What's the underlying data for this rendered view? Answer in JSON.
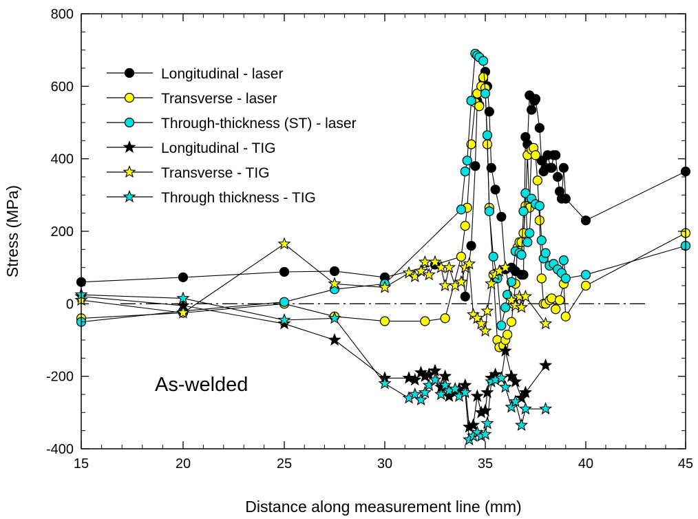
{
  "chart_data": {
    "type": "scatter",
    "xlabel": "Distance along measurement line  (mm)",
    "ylabel": "Stress  (MPa)",
    "xlim": [
      15,
      45
    ],
    "ylim": [
      -400,
      800
    ],
    "x_scale": "piecewise",
    "x_ticks": [
      15,
      20,
      25,
      30,
      35,
      40,
      45
    ],
    "y_ticks": [
      -400,
      -200,
      0,
      200,
      400,
      600,
      800
    ],
    "annotation": "As-welded",
    "legend_position": "top-left",
    "reference_line": {
      "y": 0,
      "style": "dash-dot"
    },
    "series": [
      {
        "name": "Longitudinal - laser",
        "marker": "circle",
        "color": "#000000",
        "points": [
          [
            15,
            60
          ],
          [
            20,
            73
          ],
          [
            25,
            88
          ],
          [
            27.5,
            90
          ],
          [
            30,
            73
          ],
          [
            32.5,
            108
          ],
          [
            33.8,
            130
          ],
          [
            34,
            20
          ],
          [
            34.3,
            160
          ],
          [
            34.5,
            380
          ],
          [
            34.6,
            560
          ],
          [
            34.7,
            548
          ],
          [
            34.8,
            590
          ],
          [
            34.9,
            620
          ],
          [
            35,
            640
          ],
          [
            35.1,
            600
          ],
          [
            35.2,
            530
          ],
          [
            35.3,
            375
          ],
          [
            35.5,
            315
          ],
          [
            35.8,
            240
          ],
          [
            36,
            95
          ],
          [
            36.3,
            100
          ],
          [
            36.5,
            90
          ],
          [
            36.8,
            80
          ],
          [
            36.9,
            80
          ],
          [
            37,
            460
          ],
          [
            37.1,
            440
          ],
          [
            37.2,
            575
          ],
          [
            37.3,
            535
          ],
          [
            37.45,
            560
          ],
          [
            37.5,
            565
          ],
          [
            37.7,
            485
          ],
          [
            37.8,
            395
          ],
          [
            37.9,
            365
          ],
          [
            38,
            375
          ],
          [
            38.1,
            410
          ],
          [
            38.25,
            375
          ],
          [
            38.3,
            375
          ],
          [
            38.4,
            410
          ],
          [
            38.5,
            410
          ],
          [
            38.6,
            350
          ],
          [
            38.7,
            310
          ],
          [
            38.8,
            290
          ],
          [
            38.9,
            375
          ],
          [
            39,
            290
          ],
          [
            40,
            230
          ],
          [
            45,
            365
          ]
        ]
      },
      {
        "name": "Transverse - laser",
        "marker": "circle",
        "color": "#ffff00",
        "points": [
          [
            15,
            -40
          ],
          [
            20,
            -25
          ],
          [
            25,
            0
          ],
          [
            27.5,
            -35
          ],
          [
            30,
            -48
          ],
          [
            32,
            -48
          ],
          [
            33,
            -40
          ],
          [
            33.8,
            130
          ],
          [
            34,
            215
          ],
          [
            34.1,
            265
          ],
          [
            34.3,
            440
          ],
          [
            34.5,
            555
          ],
          [
            34.6,
            580
          ],
          [
            34.7,
            545
          ],
          [
            34.8,
            600
          ],
          [
            34.9,
            625
          ],
          [
            35,
            595
          ],
          [
            35.1,
            440
          ],
          [
            35.2,
            265
          ],
          [
            35.4,
            80
          ],
          [
            35.6,
            -100
          ],
          [
            35.7,
            -120
          ],
          [
            35.9,
            -115
          ],
          [
            36,
            -100
          ],
          [
            36.1,
            -85
          ],
          [
            36.3,
            -50
          ],
          [
            36.4,
            0
          ],
          [
            36.5,
            55
          ],
          [
            36.6,
            155
          ],
          [
            36.7,
            170
          ],
          [
            36.8,
            170
          ],
          [
            36.9,
            195
          ],
          [
            37,
            270
          ],
          [
            37.1,
            410
          ],
          [
            37.2,
            265
          ],
          [
            37.3,
            425
          ],
          [
            37.4,
            430
          ],
          [
            37.5,
            410
          ],
          [
            37.6,
            340
          ],
          [
            37.7,
            230
          ],
          [
            37.8,
            70
          ],
          [
            37.9,
            0
          ],
          [
            38,
            0
          ],
          [
            38.2,
            10
          ],
          [
            38.3,
            15
          ],
          [
            38.5,
            -15
          ],
          [
            38.7,
            10
          ],
          [
            38.9,
            55
          ],
          [
            39,
            -35
          ],
          [
            40,
            50
          ],
          [
            45,
            195
          ]
        ]
      },
      {
        "name": "Through-thickness (ST) - laser",
        "marker": "circle",
        "color": "#00e0e0",
        "points": [
          [
            15,
            -50
          ],
          [
            20,
            -20
          ],
          [
            25,
            5
          ],
          [
            27.5,
            40
          ],
          [
            30,
            55
          ],
          [
            33.8,
            260
          ],
          [
            34,
            365
          ],
          [
            34.1,
            395
          ],
          [
            34.3,
            560
          ],
          [
            34.5,
            690
          ],
          [
            34.6,
            685
          ],
          [
            34.7,
            680
          ],
          [
            34.9,
            670
          ],
          [
            35,
            580
          ],
          [
            35.1,
            465
          ],
          [
            35.2,
            255
          ],
          [
            35.4,
            130
          ],
          [
            35.6,
            70
          ],
          [
            35.8,
            -60
          ],
          [
            36,
            -10
          ],
          [
            36.1,
            25
          ],
          [
            36.3,
            60
          ],
          [
            36.5,
            145
          ],
          [
            36.7,
            140
          ],
          [
            36.8,
            135
          ],
          [
            36.9,
            255
          ],
          [
            37,
            305
          ],
          [
            37.1,
            170
          ],
          [
            37.2,
            195
          ],
          [
            37.3,
            290
          ],
          [
            37.5,
            275
          ],
          [
            37.7,
            270
          ],
          [
            37.8,
            175
          ],
          [
            37.9,
            125
          ],
          [
            38,
            140
          ],
          [
            38.2,
            105
          ],
          [
            38.4,
            110
          ],
          [
            38.6,
            95
          ],
          [
            38.8,
            85
          ],
          [
            38.9,
            120
          ],
          [
            39,
            70
          ],
          [
            40,
            80
          ],
          [
            45,
            160
          ]
        ]
      },
      {
        "name": "Longitudinal - TIG",
        "marker": "star",
        "color": "#000000",
        "points": [
          [
            15,
            20
          ],
          [
            20,
            -5
          ],
          [
            25,
            -55
          ],
          [
            27.5,
            -100
          ],
          [
            30,
            -205
          ],
          [
            31.2,
            -205
          ],
          [
            31.5,
            -210
          ],
          [
            31.8,
            -190
          ],
          [
            32,
            -200
          ],
          [
            32.2,
            -195
          ],
          [
            32.5,
            -185
          ],
          [
            32.8,
            -230
          ],
          [
            33,
            -200
          ],
          [
            33.2,
            -255
          ],
          [
            33.5,
            -245
          ],
          [
            33.7,
            -235
          ],
          [
            34,
            -225
          ],
          [
            34.2,
            -340
          ],
          [
            34.4,
            -335
          ],
          [
            34.6,
            -255
          ],
          [
            34.8,
            -300
          ],
          [
            35,
            -295
          ],
          [
            35.1,
            -245
          ],
          [
            35.3,
            -205
          ],
          [
            35.5,
            -195
          ],
          [
            35.8,
            -205
          ],
          [
            36,
            -130
          ],
          [
            36.3,
            -200
          ],
          [
            36.5,
            -215
          ],
          [
            36.8,
            -260
          ],
          [
            37,
            -245
          ],
          [
            38,
            -170
          ]
        ]
      },
      {
        "name": "Transverse - TIG",
        "marker": "star",
        "color": "#ffff00",
        "points": [
          [
            15,
            10
          ],
          [
            20,
            -25
          ],
          [
            25,
            165
          ],
          [
            27.5,
            55
          ],
          [
            30,
            45
          ],
          [
            31.2,
            85
          ],
          [
            31.5,
            75
          ],
          [
            31.8,
            90
          ],
          [
            32,
            115
          ],
          [
            32.2,
            80
          ],
          [
            32.5,
            115
          ],
          [
            32.8,
            100
          ],
          [
            33,
            50
          ],
          [
            33.2,
            100
          ],
          [
            33.5,
            50
          ],
          [
            33.8,
            60
          ],
          [
            34,
            100
          ],
          [
            34.2,
            110
          ],
          [
            34.4,
            -30
          ],
          [
            34.6,
            -40
          ],
          [
            34.8,
            -55
          ],
          [
            35,
            -75
          ],
          [
            35.1,
            -20
          ],
          [
            35.3,
            55
          ],
          [
            35.5,
            80
          ],
          [
            35.7,
            90
          ],
          [
            36,
            100
          ],
          [
            36.3,
            10
          ],
          [
            36.5,
            -5
          ],
          [
            36.7,
            20
          ],
          [
            36.8,
            -10
          ],
          [
            37,
            20
          ],
          [
            38,
            -55
          ]
        ]
      },
      {
        "name": "Through thickness - TIG",
        "marker": "star",
        "color": "#00e0e0",
        "points": [
          [
            15,
            25
          ],
          [
            20,
            15
          ],
          [
            25,
            -45
          ],
          [
            27.5,
            -40
          ],
          [
            30,
            -220
          ],
          [
            31.2,
            -260
          ],
          [
            31.5,
            -250
          ],
          [
            31.8,
            -265
          ],
          [
            32,
            -245
          ],
          [
            32.2,
            -225
          ],
          [
            32.5,
            -210
          ],
          [
            32.8,
            -250
          ],
          [
            33,
            -225
          ],
          [
            33.2,
            -240
          ],
          [
            33.5,
            -235
          ],
          [
            33.7,
            -255
          ],
          [
            34,
            -245
          ],
          [
            34.2,
            -375
          ],
          [
            34.4,
            -365
          ],
          [
            34.6,
            -355
          ],
          [
            34.8,
            -365
          ],
          [
            35,
            -360
          ],
          [
            35.1,
            -330
          ],
          [
            35.3,
            -215
          ],
          [
            35.5,
            -210
          ],
          [
            35.8,
            -205
          ],
          [
            36,
            -230
          ],
          [
            36.3,
            -285
          ],
          [
            36.5,
            -270
          ],
          [
            36.8,
            -335
          ],
          [
            37,
            -290
          ],
          [
            38,
            -290
          ]
        ]
      }
    ]
  }
}
